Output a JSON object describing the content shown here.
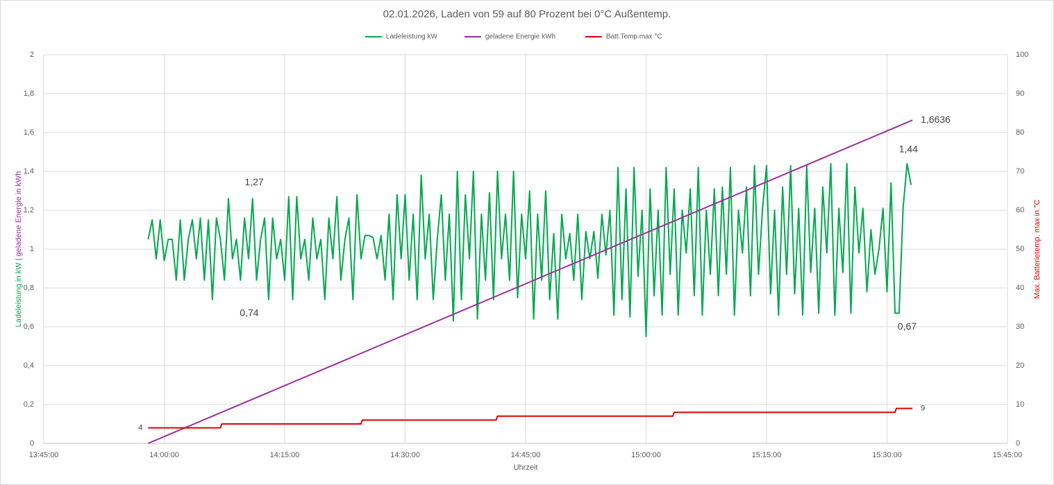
{
  "chart_data": {
    "type": "line",
    "title": "02.01.2026, Laden von 59 auf 80 Prozent bei 0°C Außentemp.",
    "xlabel": "Uhrzeit",
    "ylabel_parts": [
      "Ladeleistung in kW",
      "|",
      "geladene Energie in kWh"
    ],
    "y2label": "Max. Batterietemp. max in °C",
    "xlim": [
      49500,
      56700
    ],
    "xticks": [
      {
        "value": 49500,
        "label": "13:45:00"
      },
      {
        "value": 50400,
        "label": "14:00:00"
      },
      {
        "value": 51300,
        "label": "14:15:00"
      },
      {
        "value": 52200,
        "label": "14:30:00"
      },
      {
        "value": 53100,
        "label": "14:45:00"
      },
      {
        "value": 54000,
        "label": "15:00:00"
      },
      {
        "value": 54900,
        "label": "15:15:00"
      },
      {
        "value": 55800,
        "label": "15:30:00"
      },
      {
        "value": 56700,
        "label": "15:45:00"
      }
    ],
    "ylim": [
      0,
      2
    ],
    "yticks": [
      0,
      {
        "value": 0.2,
        "label": "0,2"
      },
      {
        "value": 0.4,
        "label": "0,4"
      },
      {
        "value": 0.6,
        "label": "0,6"
      },
      {
        "value": 0.8,
        "label": "0,8"
      },
      1,
      {
        "value": 1.2,
        "label": "1,2"
      },
      {
        "value": 1.4,
        "label": "1,4"
      },
      {
        "value": 1.6,
        "label": "1,6"
      },
      {
        "value": 1.8,
        "label": "1,8"
      },
      2
    ],
    "y2lim": [
      0,
      100
    ],
    "y2ticks": [
      0,
      10,
      20,
      30,
      40,
      50,
      60,
      70,
      80,
      90,
      100
    ],
    "grid": true,
    "legend": "top",
    "series": [
      {
        "name": "Ladeleistung kW",
        "color": "#00a84f",
        "x": [
          50280,
          50310,
          50340,
          50370,
          50400,
          50430,
          50460,
          50490,
          50520,
          50550,
          50580,
          50610,
          50640,
          50670,
          50700,
          50730,
          50760,
          50790,
          50820,
          50850,
          50880,
          50910,
          50940,
          50970,
          51000,
          51030,
          51060,
          51090,
          51120,
          51150,
          51180,
          51210,
          51240,
          51270,
          51300,
          51330,
          51360,
          51390,
          51420,
          51450,
          51480,
          51510,
          51540,
          51570,
          51600,
          51630,
          51660,
          51690,
          51720,
          51750,
          51780,
          51810,
          51840,
          51870,
          51900,
          51930,
          51960,
          51990,
          52020,
          52050,
          52080,
          52110,
          52140,
          52170,
          52200,
          52230,
          52260,
          52290,
          52320,
          52350,
          52380,
          52410,
          52440,
          52470,
          52500,
          52530,
          52560,
          52590,
          52620,
          52650,
          52680,
          52710,
          52740,
          52770,
          52800,
          52830,
          52860,
          52890,
          52920,
          52950,
          52980,
          53010,
          53040,
          53070,
          53100,
          53130,
          53160,
          53190,
          53220,
          53250,
          53280,
          53310,
          53340,
          53370,
          53400,
          53430,
          53460,
          53490,
          53520,
          53550,
          53580,
          53610,
          53640,
          53670,
          53700,
          53730,
          53760,
          53790,
          53820,
          53850,
          53880,
          53910,
          53940,
          53970,
          54000,
          54030,
          54060,
          54090,
          54120,
          54150,
          54180,
          54210,
          54240,
          54270,
          54300,
          54330,
          54360,
          54390,
          54420,
          54450,
          54480,
          54510,
          54540,
          54570,
          54600,
          54630,
          54660,
          54690,
          54720,
          54750,
          54780,
          54810,
          54840,
          54870,
          54900,
          54930,
          54960,
          54990,
          55020,
          55050,
          55080,
          55110,
          55140,
          55170,
          55200,
          55230,
          55260,
          55290,
          55320,
          55350,
          55380,
          55410,
          55440,
          55470,
          55500,
          55530,
          55560,
          55590,
          55620,
          55650,
          55680,
          55710,
          55740,
          55770,
          55800,
          55830,
          55860,
          55890,
          55920,
          55950,
          55980
        ],
        "values": [
          1.05,
          1.15,
          0.95,
          1.15,
          0.94,
          1.05,
          1.05,
          0.84,
          1.15,
          0.84,
          1.05,
          1.15,
          0.95,
          1.16,
          0.84,
          1.15,
          0.74,
          1.16,
          1.05,
          0.84,
          1.26,
          0.95,
          1.05,
          0.84,
          1.16,
          0.95,
          1.26,
          0.84,
          1.05,
          1.16,
          0.74,
          1.16,
          0.95,
          1.05,
          0.84,
          1.27,
          0.74,
          1.27,
          0.95,
          1.05,
          0.84,
          1.16,
          0.95,
          1.05,
          0.74,
          1.16,
          0.95,
          1.27,
          0.84,
          1.05,
          1.16,
          0.74,
          1.28,
          0.95,
          1.07,
          1.07,
          1.06,
          0.95,
          1.07,
          0.84,
          1.18,
          0.74,
          1.28,
          0.95,
          1.28,
          0.84,
          1.18,
          0.74,
          1.38,
          0.95,
          1.18,
          0.74,
          1.05,
          1.28,
          0.84,
          1.18,
          0.63,
          1.4,
          0.74,
          1.28,
          0.95,
          1.4,
          0.64,
          1.18,
          0.84,
          1.29,
          0.74,
          1.4,
          0.95,
          1.18,
          0.84,
          1.4,
          0.75,
          1.18,
          0.95,
          1.3,
          0.64,
          1.18,
          0.84,
          1.3,
          0.74,
          1.08,
          0.64,
          1.18,
          0.95,
          1.08,
          0.84,
          1.18,
          0.74,
          1.09,
          0.95,
          1.09,
          0.85,
          1.18,
          0.97,
          1.2,
          0.66,
          1.42,
          0.74,
          1.31,
          0.65,
          1.42,
          0.86,
          1.2,
          0.55,
          1.31,
          0.76,
          1.2,
          0.66,
          1.42,
          0.87,
          1.31,
          0.66,
          1.2,
          0.98,
          1.31,
          0.76,
          1.42,
          0.66,
          1.2,
          0.87,
          1.31,
          0.76,
          1.32,
          0.87,
          1.42,
          0.66,
          1.2,
          0.98,
          1.32,
          0.76,
          1.43,
          0.87,
          1.21,
          1.43,
          0.77,
          1.2,
          0.66,
          1.32,
          0.87,
          1.43,
          0.77,
          1.21,
          0.66,
          1.43,
          0.88,
          1.21,
          0.67,
          1.32,
          0.98,
          1.44,
          0.66,
          1.21,
          0.88,
          1.44,
          0.67,
          1.32,
          0.98,
          1.21,
          0.78,
          1.1,
          0.87,
          1.0,
          1.21,
          0.78,
          1.34,
          0.67,
          0.67,
          1.21,
          1.44,
          1.33
        ]
      },
      {
        "name": "geladene Energie kWh",
        "color": "#9b2f9b",
        "x": [
          50280,
          55990
        ],
        "values": [
          0,
          1.6636
        ]
      },
      {
        "name": "Batt.Temp.max °C",
        "color": "#e00000",
        "axis": "y2",
        "x": [
          50280,
          50820,
          50830,
          51870,
          51880,
          52880,
          52890,
          54200,
          54210,
          55860,
          55870,
          55990
        ],
        "values": [
          4,
          4,
          5,
          5,
          6,
          6,
          7,
          7,
          8,
          8,
          9,
          9
        ]
      }
    ],
    "annotations": [
      {
        "label": "1,27",
        "value": 1.27,
        "x": 51072,
        "pos": "above"
      },
      {
        "label": "0,74",
        "value": 0.74,
        "x": 51035,
        "pos": "below"
      },
      {
        "label": "1,6636",
        "value": 1.6636,
        "x": 55990,
        "pos": "right"
      },
      {
        "label": "1,44",
        "value": 1.44,
        "x": 55960,
        "pos": "above"
      },
      {
        "label": "0,67",
        "value": 0.67,
        "x": 55950,
        "pos": "below"
      },
      {
        "label": "4",
        "value": 4,
        "x": 50280,
        "pos": "left",
        "axis": "y2"
      },
      {
        "label": "9",
        "value": 9,
        "x": 55990,
        "pos": "right",
        "axis": "y2"
      }
    ]
  }
}
